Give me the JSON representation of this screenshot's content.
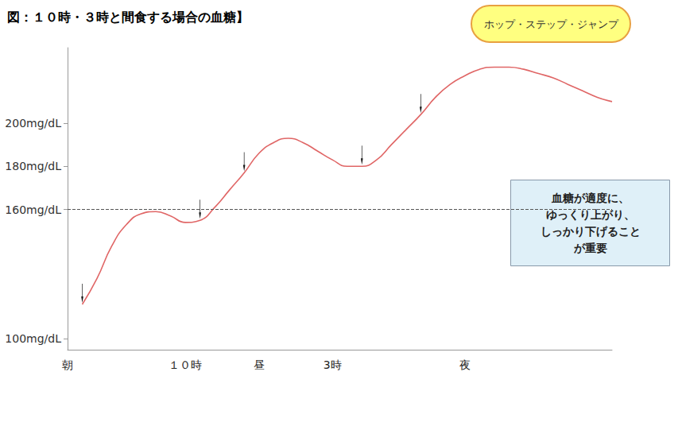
{
  "chart_data": {
    "type": "line",
    "title": "図：１０時・３時と間食する場合の血糖】",
    "categories": [
      "朝",
      null,
      null,
      null,
      null,
      null,
      null,
      null,
      "１０時",
      null,
      null,
      null,
      null,
      "昼",
      null,
      null,
      null,
      null,
      "3時",
      null,
      null,
      null,
      null,
      null,
      null,
      null,
      null,
      "夜",
      null,
      null,
      null,
      null,
      null,
      null,
      null,
      null,
      null,
      null
    ],
    "values": [
      null,
      116,
      128,
      143,
      153,
      158,
      159,
      157,
      154,
      155,
      161,
      169,
      177,
      186,
      191,
      193,
      191,
      187,
      183,
      180,
      180,
      183,
      190,
      197,
      204,
      212,
      218,
      222,
      225,
      226,
      226,
      225,
      223,
      221,
      218,
      215,
      212,
      210
    ],
    "color": "#e06666",
    "line_style": "solid",
    "ylim": [
      95,
      235
    ],
    "yticks": [
      {
        "value": 100,
        "label": "100mg/dL"
      },
      {
        "value": 160,
        "label": "160mg/dL"
      },
      {
        "value": 180,
        "label": "180mg/dL"
      },
      {
        "value": 200,
        "label": "200mg/dL"
      }
    ],
    "threshold": 160,
    "meal_arrows": [
      1,
      9,
      12,
      20,
      24
    ],
    "annotations": [
      "ホップ・ステップ・ジャンプ",
      "血糖が適度に、\nゆっくり上がり、\nしっかり下げること\nが重要"
    ],
    "grid": false
  }
}
